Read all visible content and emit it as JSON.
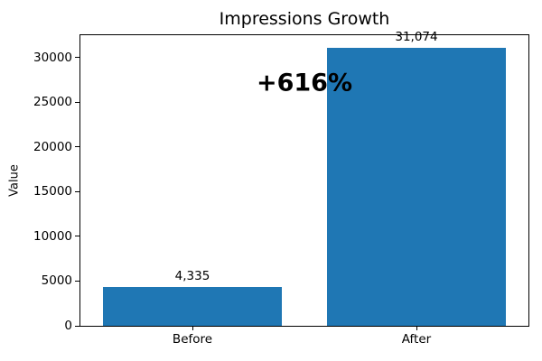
{
  "chart_data": {
    "type": "bar",
    "title": "Impressions Growth",
    "xlabel": "",
    "ylabel": "Value",
    "categories": [
      "Before",
      "After"
    ],
    "values": [
      4335,
      31074
    ],
    "value_labels": [
      "4,335",
      "31,074"
    ],
    "annotation": "+616%",
    "bar_color": "#1f77b4",
    "text_color": "#000000",
    "ylim": [
      0,
      32500
    ],
    "yticks": [
      0,
      5000,
      10000,
      15000,
      20000,
      25000,
      30000
    ],
    "ytick_labels": [
      "0",
      "5000",
      "10000",
      "15000",
      "20000",
      "25000",
      "30000"
    ],
    "grid": false,
    "legend": "none",
    "bar_width_fraction": 0.8
  }
}
